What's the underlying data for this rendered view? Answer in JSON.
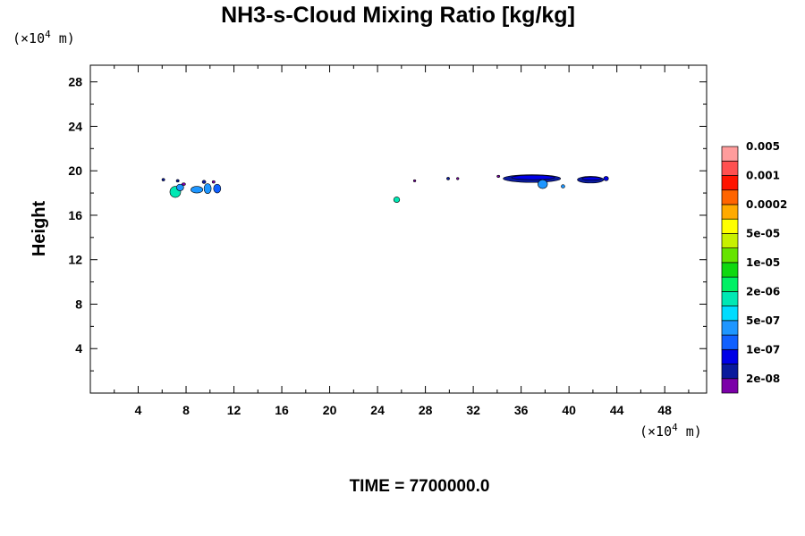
{
  "chart_data": {
    "type": "contour",
    "title": "NH3-s-Cloud Mixing Ratio [kg/kg]",
    "xlabel": "",
    "ylabel": "Height",
    "x_unit": {
      "prefix": "(×10",
      "exp": "4",
      "suffix": " m)"
    },
    "y_unit": {
      "prefix": "(×10",
      "exp": "4",
      "suffix": " m)"
    },
    "xlim": [
      0,
      51.5
    ],
    "ylim": [
      0,
      29.5
    ],
    "x_ticks": [
      4,
      8,
      12,
      16,
      20,
      24,
      28,
      32,
      36,
      40,
      44,
      48
    ],
    "y_ticks": [
      4,
      8,
      12,
      16,
      20,
      24,
      28
    ],
    "footer": "TIME = 7700000.0",
    "colorbar": {
      "colors": [
        "#7b00a8",
        "#0a1a9c",
        "#0000e6",
        "#1060ff",
        "#1e96ff",
        "#00dcff",
        "#00e8b4",
        "#00f064",
        "#10d810",
        "#66e400",
        "#c8f000",
        "#ffff00",
        "#ffaa00",
        "#ff6400",
        "#ff1400",
        "#ff5050",
        "#ff9c9c"
      ],
      "labels": [
        "2e-08",
        "1e-07",
        "5e-07",
        "2e-06",
        "1e-05",
        "5e-05",
        "0.0002",
        "0.001",
        "0.005"
      ]
    },
    "regions": [
      {
        "x": 7.1,
        "y": 18.1,
        "rx": 0.45,
        "ry": 0.5,
        "level": 6
      },
      {
        "x": 7.5,
        "y": 18.5,
        "rx": 0.3,
        "ry": 0.3,
        "level": 4
      },
      {
        "x": 8.9,
        "y": 18.3,
        "rx": 0.5,
        "ry": 0.3,
        "level": 4
      },
      {
        "x": 9.8,
        "y": 18.4,
        "rx": 0.3,
        "ry": 0.45,
        "level": 4
      },
      {
        "x": 10.6,
        "y": 18.4,
        "rx": 0.3,
        "ry": 0.4,
        "level": 3
      },
      {
        "x": 6.1,
        "y": 19.2,
        "rx": 0.12,
        "ry": 0.12,
        "level": 1
      },
      {
        "x": 7.3,
        "y": 19.1,
        "rx": 0.12,
        "ry": 0.12,
        "level": 1
      },
      {
        "x": 7.8,
        "y": 18.8,
        "rx": 0.15,
        "ry": 0.12,
        "level": 0
      },
      {
        "x": 9.5,
        "y": 19.0,
        "rx": 0.15,
        "ry": 0.15,
        "level": 1
      },
      {
        "x": 10.3,
        "y": 19.0,
        "rx": 0.12,
        "ry": 0.12,
        "level": 0
      },
      {
        "x": 25.6,
        "y": 17.4,
        "rx": 0.25,
        "ry": 0.25,
        "level": 6
      },
      {
        "x": 27.1,
        "y": 19.1,
        "rx": 0.1,
        "ry": 0.1,
        "level": 0
      },
      {
        "x": 29.9,
        "y": 19.3,
        "rx": 0.12,
        "ry": 0.12,
        "level": 1
      },
      {
        "x": 30.7,
        "y": 19.3,
        "rx": 0.1,
        "ry": 0.1,
        "level": 0
      },
      {
        "x": 34.1,
        "y": 19.5,
        "rx": 0.12,
        "ry": 0.1,
        "level": 0
      },
      {
        "x": 36.9,
        "y": 19.3,
        "rx": 2.4,
        "ry": 0.35,
        "level": 1
      },
      {
        "x": 37.0,
        "y": 19.4,
        "rx": 1.8,
        "ry": 0.2,
        "level": 2
      },
      {
        "x": 37.8,
        "y": 18.8,
        "rx": 0.4,
        "ry": 0.4,
        "level": 4
      },
      {
        "x": 39.5,
        "y": 18.6,
        "rx": 0.15,
        "ry": 0.15,
        "level": 4
      },
      {
        "x": 41.8,
        "y": 19.2,
        "rx": 1.1,
        "ry": 0.3,
        "level": 1
      },
      {
        "x": 41.9,
        "y": 19.3,
        "rx": 0.8,
        "ry": 0.15,
        "level": 2
      },
      {
        "x": 43.1,
        "y": 19.3,
        "rx": 0.2,
        "ry": 0.2,
        "level": 2
      }
    ]
  }
}
